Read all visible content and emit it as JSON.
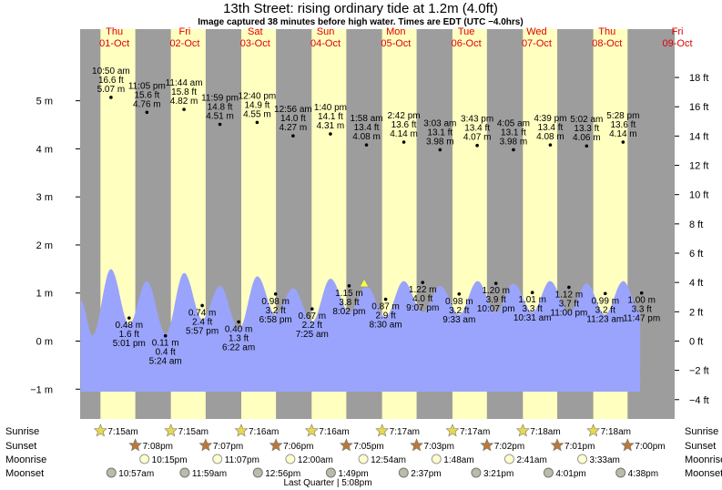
{
  "title": "13th Street: rising  ordinary tide at 1.2m (4.0ft)",
  "subtitle": "Image captured 38 minutes before high water. Times are EDT (UTC −4.0hrs)",
  "chart_data": {
    "type": "tide",
    "days": [
      {
        "name": "Thu",
        "date": "01-Oct"
      },
      {
        "name": "Fri",
        "date": "02-Oct"
      },
      {
        "name": "Sat",
        "date": "03-Oct"
      },
      {
        "name": "Sun",
        "date": "04-Oct"
      },
      {
        "name": "Mon",
        "date": "05-Oct"
      },
      {
        "name": "Tue",
        "date": "06-Oct"
      },
      {
        "name": "Wed",
        "date": "07-Oct"
      },
      {
        "name": "Thu",
        "date": "08-Oct"
      },
      {
        "name": "Fri",
        "date": "09-Oct"
      }
    ],
    "ylim": [
      -1.62,
      6.49
    ],
    "yticks": [
      {
        "value": -1,
        "label": "−1 m"
      },
      {
        "value": 0,
        "label": "0 m"
      },
      {
        "value": 1,
        "label": "1 m"
      },
      {
        "value": 2,
        "label": "2 m"
      },
      {
        "value": 3,
        "label": "3 m"
      },
      {
        "value": 4,
        "label": "4 m"
      },
      {
        "value": 5,
        "label": "5 m"
      }
    ],
    "y2lim": [
      -5.32,
      21.3
    ],
    "y2ticks": [
      {
        "value": -4,
        "label": "−4 ft"
      },
      {
        "value": -2,
        "label": "−2 ft"
      },
      {
        "value": 0,
        "label": "0 ft"
      },
      {
        "value": 2,
        "label": "2 ft"
      },
      {
        "value": 4,
        "label": "4 ft"
      },
      {
        "value": 6,
        "label": "6 ft"
      },
      {
        "value": 8,
        "label": "8 ft"
      },
      {
        "value": 10,
        "label": "10 ft"
      },
      {
        "value": 12,
        "label": "12 ft"
      },
      {
        "value": 14,
        "label": "14 ft"
      },
      {
        "value": 16,
        "label": "16 ft"
      },
      {
        "value": 18,
        "label": "18 ft"
      }
    ],
    "tides": [
      {
        "time": "10:50 am",
        "ft": "16.6 ft",
        "m": {
          "value": 5.07,
          "label": "5.07 m"
        }
      },
      {
        "time": "5:01 pm",
        "ft": "1.6 ft",
        "m": {
          "value": 0.48,
          "label": "0.48 m"
        }
      },
      {
        "time": "11:05 pm",
        "ft": "15.6 ft",
        "m": {
          "value": 4.76,
          "label": "4.76 m"
        }
      },
      {
        "time": "5:24 am",
        "ft": "0.4 ft",
        "m": {
          "value": 0.11,
          "label": "0.11 m"
        }
      },
      {
        "time": "11:44 am",
        "ft": "15.8 ft",
        "m": {
          "value": 4.82,
          "label": "4.82 m"
        }
      },
      {
        "time": "5:57 pm",
        "ft": "2.4 ft",
        "m": {
          "value": 0.74,
          "label": "0.74 m"
        }
      },
      {
        "time": "11:59 pm",
        "ft": "14.8 ft",
        "m": {
          "value": 4.51,
          "label": "4.51 m"
        }
      },
      {
        "time": "6:22 am",
        "ft": "1.3 ft",
        "m": {
          "value": 0.4,
          "label": "0.40 m"
        }
      },
      {
        "time": "12:40 pm",
        "ft": "14.9 ft",
        "m": {
          "value": 4.55,
          "label": "4.55 m"
        }
      },
      {
        "time": "6:58 pm",
        "ft": "3.2 ft",
        "m": {
          "value": 0.98,
          "label": "0.98 m"
        }
      },
      {
        "time": "12:56 am",
        "ft": "14.0 ft",
        "m": {
          "value": 4.27,
          "label": "4.27 m"
        }
      },
      {
        "time": "7:25 am",
        "ft": "2.2 ft",
        "m": {
          "value": 0.67,
          "label": "0.67 m"
        }
      },
      {
        "time": "1:40 pm",
        "ft": "14.1 ft",
        "m": {
          "value": 4.31,
          "label": "4.31 m"
        }
      },
      {
        "time": "8:02 pm",
        "ft": "3.8 ft",
        "m": {
          "value": 1.15,
          "label": "1.15 m"
        }
      },
      {
        "time": "1:58 am",
        "ft": "13.4 ft",
        "m": {
          "value": 4.08,
          "label": "4.08 m"
        }
      },
      {
        "time": "8:30 am",
        "ft": "2.9 ft",
        "m": {
          "value": 0.87,
          "label": "0.87 m"
        }
      },
      {
        "time": "2:42 pm",
        "ft": "13.6 ft",
        "m": {
          "value": 4.14,
          "label": "4.14 m"
        }
      },
      {
        "time": "9:07 pm",
        "ft": "4.0 ft",
        "m": {
          "value": 1.22,
          "label": "1.22 m"
        }
      },
      {
        "time": "3:03 am",
        "ft": "13.1 ft",
        "m": {
          "value": 3.98,
          "label": "3.98 m"
        }
      },
      {
        "time": "9:33 am",
        "ft": "3.2 ft",
        "m": {
          "value": 0.98,
          "label": "0.98 m"
        }
      },
      {
        "time": "3:43 pm",
        "ft": "13.4 ft",
        "m": {
          "value": 4.07,
          "label": "4.07 m"
        }
      },
      {
        "time": "10:07 pm",
        "ft": "3.9 ft",
        "m": {
          "value": 1.2,
          "label": "1.20 m"
        }
      },
      {
        "time": "4:05 am",
        "ft": "13.1 ft",
        "m": {
          "value": 3.98,
          "label": "3.98 m"
        }
      },
      {
        "time": "10:31 am",
        "ft": "3.3 ft",
        "m": {
          "value": 1.01,
          "label": "1.01 m"
        }
      },
      {
        "time": "4:39 pm",
        "ft": "13.4 ft",
        "m": {
          "value": 4.08,
          "label": "4.08 m"
        }
      },
      {
        "time": "11:00 pm",
        "ft": "3.7 ft",
        "m": {
          "value": 1.12,
          "label": "1.12 m"
        }
      },
      {
        "time": "5:02 am",
        "ft": "13.3 ft",
        "m": {
          "value": 4.06,
          "label": "4.06 m"
        }
      },
      {
        "time": "11:23 am",
        "ft": "3.2 ft",
        "m": {
          "value": 0.99,
          "label": "0.99 m"
        }
      },
      {
        "time": "5:28 pm",
        "ft": "13.6 ft",
        "m": {
          "value": 4.14,
          "label": "4.14 m"
        }
      },
      {
        "time": "11:47 pm",
        "ft": "3.3 ft",
        "m": {
          "value": 1.0,
          "label": "1.00 m"
        }
      }
    ],
    "curve": {
      "color": "#9aa4fc",
      "x": [
        0.02,
        0.19,
        0.45,
        0.71,
        0.96,
        1.23,
        1.49,
        1.75,
        2.0,
        2.27,
        2.53,
        2.79,
        3.04,
        3.31,
        3.57,
        3.84,
        4.08,
        4.35,
        4.61,
        4.88,
        5.13,
        5.4,
        5.66,
        5.92,
        6.17,
        6.44,
        6.69,
        6.96,
        7.21,
        7.47,
        7.73,
        7.97
      ],
      "values": [
        0.85,
        0.12,
        1.5,
        0.35,
        1.25,
        0.15,
        1.42,
        0.45,
        1.15,
        0.25,
        1.35,
        0.55,
        1.1,
        0.4,
        1.3,
        0.6,
        1.15,
        0.5,
        1.25,
        0.6,
        1.15,
        0.55,
        1.25,
        0.6,
        1.2,
        0.6,
        1.25,
        0.6,
        1.2,
        0.55,
        1.25,
        0.6
      ]
    },
    "day_color": "#ffffc0",
    "night_color": "#9d9d9d"
  },
  "astro": {
    "rows": [
      {
        "name": "Sunrise",
        "times": [
          "7:15am",
          "7:15am",
          "7:16am",
          "7:16am",
          "7:17am",
          "7:17am",
          "7:18am",
          "7:18am"
        ]
      },
      {
        "name": "Sunset",
        "times": [
          "7:08pm",
          "7:07pm",
          "7:06pm",
          "7:05pm",
          "7:03pm",
          "7:02pm",
          "7:01pm",
          "7:00pm"
        ]
      },
      {
        "name": "Moonrise",
        "times": [
          "10:15pm",
          "11:07pm",
          "12:00am",
          "12:54am",
          "1:48am",
          "2:41am",
          "3:33am"
        ]
      },
      {
        "name": "Moonset",
        "times": [
          "10:57am",
          "11:59am",
          "12:56pm",
          "1:49pm",
          "2:37pm",
          "3:21pm",
          "4:01pm",
          "4:38pm"
        ]
      }
    ],
    "moon_phase": "Last Quarter | 5:08pm"
  }
}
